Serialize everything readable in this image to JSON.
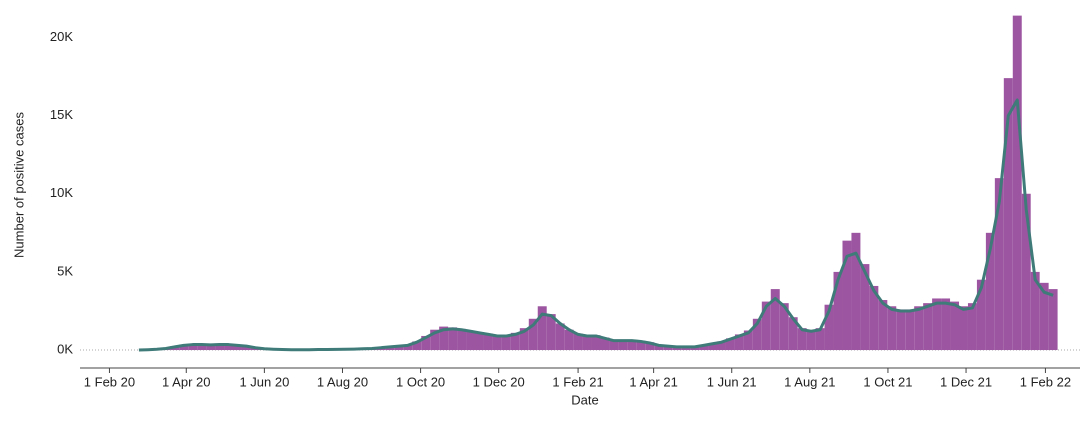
{
  "chart_data": {
    "type": "bar",
    "x_label": "Date",
    "y_label": "Number of positive cases",
    "x": [
      "2020-02-24",
      "2020-03-02",
      "2020-03-09",
      "2020-03-16",
      "2020-03-23",
      "2020-03-30",
      "2020-04-06",
      "2020-04-13",
      "2020-04-20",
      "2020-04-27",
      "2020-05-04",
      "2020-05-11",
      "2020-05-18",
      "2020-05-25",
      "2020-06-01",
      "2020-06-08",
      "2020-06-15",
      "2020-06-22",
      "2020-06-29",
      "2020-07-06",
      "2020-07-13",
      "2020-07-20",
      "2020-07-27",
      "2020-08-03",
      "2020-08-10",
      "2020-08-17",
      "2020-08-24",
      "2020-08-31",
      "2020-09-07",
      "2020-09-14",
      "2020-09-21",
      "2020-09-28",
      "2020-10-05",
      "2020-10-12",
      "2020-10-19",
      "2020-10-26",
      "2020-11-02",
      "2020-11-09",
      "2020-11-16",
      "2020-11-23",
      "2020-11-30",
      "2020-12-07",
      "2020-12-14",
      "2020-12-21",
      "2020-12-28",
      "2021-01-04",
      "2021-01-11",
      "2021-01-18",
      "2021-01-25",
      "2021-02-01",
      "2021-02-08",
      "2021-02-15",
      "2021-02-22",
      "2021-03-01",
      "2021-03-08",
      "2021-03-15",
      "2021-03-22",
      "2021-03-29",
      "2021-04-05",
      "2021-04-12",
      "2021-04-19",
      "2021-04-26",
      "2021-05-03",
      "2021-05-10",
      "2021-05-17",
      "2021-05-24",
      "2021-05-31",
      "2021-06-07",
      "2021-06-14",
      "2021-06-21",
      "2021-06-28",
      "2021-07-05",
      "2021-07-12",
      "2021-07-19",
      "2021-07-26",
      "2021-08-02",
      "2021-08-09",
      "2021-08-16",
      "2021-08-23",
      "2021-08-30",
      "2021-09-06",
      "2021-09-13",
      "2021-09-20",
      "2021-09-27",
      "2021-10-04",
      "2021-10-11",
      "2021-10-18",
      "2021-10-25",
      "2021-11-01",
      "2021-11-08",
      "2021-11-15",
      "2021-11-22",
      "2021-11-29",
      "2021-12-06",
      "2021-12-13",
      "2021-12-20",
      "2021-12-27",
      "2022-01-03",
      "2022-01-10",
      "2022-01-17",
      "2022-01-24",
      "2022-01-31",
      "2022-02-07"
    ],
    "series": [
      {
        "type": "bar",
        "color": "#9c55a0",
        "values": [
          0,
          20,
          60,
          120,
          250,
          350,
          400,
          380,
          350,
          420,
          380,
          320,
          260,
          180,
          100,
          60,
          40,
          30,
          30,
          25,
          35,
          35,
          45,
          55,
          70,
          90,
          120,
          170,
          230,
          280,
          350,
          550,
          900,
          1300,
          1500,
          1450,
          1350,
          1250,
          1150,
          1050,
          950,
          950,
          1100,
          1400,
          2000,
          2800,
          2300,
          1700,
          1300,
          1050,
          950,
          950,
          800,
          650,
          650,
          650,
          600,
          500,
          350,
          280,
          220,
          220,
          230,
          330,
          450,
          550,
          750,
          1000,
          1250,
          2000,
          3100,
          3900,
          3000,
          2100,
          1400,
          1250,
          1400,
          2900,
          5000,
          7000,
          7500,
          5500,
          4100,
          3200,
          2800,
          2600,
          2600,
          2800,
          3000,
          3300,
          3300,
          3100,
          2800,
          3000,
          4500,
          7500,
          11000,
          17400,
          21400,
          10000,
          5000,
          4300,
          3900
        ]
      },
      {
        "type": "line",
        "color": "#3f7b79",
        "values": [
          0,
          20,
          50,
          100,
          200,
          300,
          350,
          350,
          330,
          350,
          350,
          300,
          250,
          150,
          80,
          50,
          30,
          20,
          20,
          20,
          30,
          30,
          40,
          50,
          60,
          80,
          100,
          150,
          200,
          250,
          300,
          500,
          800,
          1100,
          1300,
          1350,
          1300,
          1200,
          1100,
          1000,
          900,
          900,
          1000,
          1200,
          1600,
          2300,
          2200,
          1700,
          1300,
          1000,
          900,
          900,
          750,
          600,
          600,
          600,
          550,
          450,
          300,
          250,
          200,
          200,
          200,
          300,
          400,
          500,
          700,
          900,
          1100,
          1700,
          2800,
          3300,
          2800,
          2000,
          1300,
          1200,
          1300,
          2500,
          4500,
          6000,
          6200,
          5000,
          3800,
          3000,
          2600,
          2500,
          2500,
          2600,
          2800,
          3000,
          3000,
          2900,
          2600,
          2700,
          4000,
          6500,
          9500,
          15000,
          16000,
          9000,
          4500,
          3700,
          3500
        ]
      }
    ],
    "xlim": [
      "2020-01-09",
      "2022-02-28"
    ],
    "xticks": [
      {
        "value": "2020-02-01",
        "label": "1 Feb 20"
      },
      {
        "value": "2020-04-01",
        "label": "1 Apr 20"
      },
      {
        "value": "2020-06-01",
        "label": "1 Jun 20"
      },
      {
        "value": "2020-08-01",
        "label": "1 Aug 20"
      },
      {
        "value": "2020-10-01",
        "label": "1 Oct 20"
      },
      {
        "value": "2020-12-01",
        "label": "1 Dec 20"
      },
      {
        "value": "2021-02-01",
        "label": "1 Feb 21"
      },
      {
        "value": "2021-04-01",
        "label": "1 Apr 21"
      },
      {
        "value": "2021-06-01",
        "label": "1 Jun 21"
      },
      {
        "value": "2021-08-01",
        "label": "1 Aug 21"
      },
      {
        "value": "2021-10-01",
        "label": "1 Oct 21"
      },
      {
        "value": "2021-12-01",
        "label": "1 Dec 21"
      },
      {
        "value": "2022-02-01",
        "label": "1 Feb 22"
      }
    ],
    "ylim": [
      -1150,
      22400
    ],
    "yticks": [
      {
        "value": 0,
        "label": "0K"
      },
      {
        "value": 5000,
        "label": "5K"
      },
      {
        "value": 10000,
        "label": "10K"
      },
      {
        "value": 15000,
        "label": "15K"
      },
      {
        "value": 20000,
        "label": "20K"
      }
    ]
  }
}
